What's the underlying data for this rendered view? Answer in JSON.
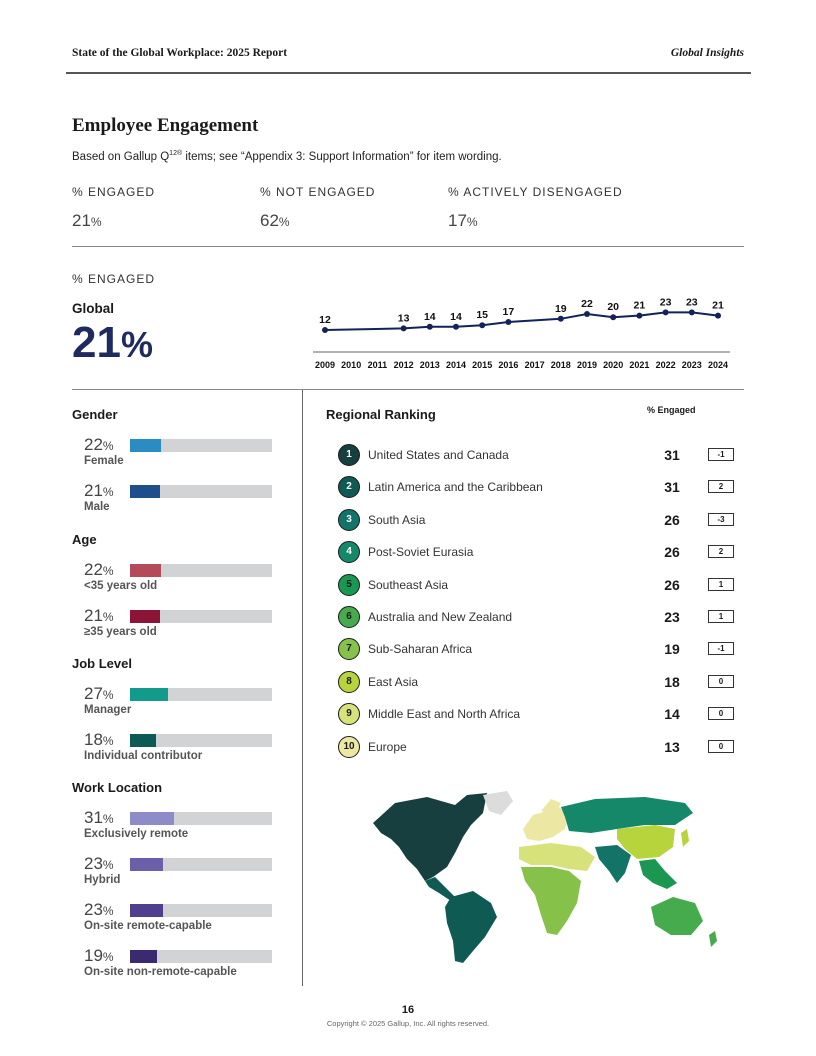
{
  "header": {
    "report_title": "State of the Global Workplace: 2025 Report",
    "section_tag": "Global Insights"
  },
  "section": {
    "title": "Employee Engagement",
    "subtitle_pre": "Based on Gallup Q",
    "subtitle_sup": "12®",
    "subtitle_post": " items; see “Appendix 3: Support Information” for item wording."
  },
  "summary": [
    {
      "label": "% ENGAGED",
      "value": "21",
      "unit": "%"
    },
    {
      "label": "% NOT ENGAGED",
      "value": "62",
      "unit": "%"
    },
    {
      "label": "% ACTIVELY DISENGAGED",
      "value": "17",
      "unit": "%"
    }
  ],
  "engaged_block": {
    "label": "% ENGAGED",
    "global_label": "Global",
    "global_value": "21",
    "global_unit": "%"
  },
  "chart_data": {
    "type": "line",
    "x": [
      "2009",
      "2010",
      "2011",
      "2012",
      "2013",
      "2014",
      "2015",
      "2016",
      "2017",
      "2018",
      "2019",
      "2020",
      "2021",
      "2022",
      "2023",
      "2024"
    ],
    "series": [
      {
        "values": [
          12,
          null,
          null,
          13,
          14,
          14,
          15,
          17,
          null,
          19,
          22,
          20,
          21,
          23,
          23,
          21
        ]
      }
    ],
    "ylim": [
      0,
      30
    ],
    "grid": false,
    "color": "#14225a"
  },
  "demographics": [
    {
      "group": "Gender",
      "items": [
        {
          "value": "22",
          "unit": "%",
          "label": "Female",
          "fraction": 0.22,
          "color": "#2b8cc4"
        },
        {
          "value": "21",
          "unit": "%",
          "label": "Male",
          "fraction": 0.21,
          "color": "#1f4e8c"
        }
      ]
    },
    {
      "group": "Age",
      "items": [
        {
          "value": "22",
          "unit": "%",
          "label": "<35 years old",
          "fraction": 0.22,
          "color": "#b34b5a"
        },
        {
          "value": "21",
          "unit": "%",
          "label": "≥35 years old",
          "fraction": 0.21,
          "color": "#8c1436"
        }
      ]
    },
    {
      "group": "Job Level",
      "items": [
        {
          "value": "27",
          "unit": "%",
          "label": "Manager",
          "fraction": 0.27,
          "color": "#129a8a"
        },
        {
          "value": "18",
          "unit": "%",
          "label": "Individual contributor",
          "fraction": 0.18,
          "color": "#0b5a55"
        }
      ]
    },
    {
      "group": "Work Location",
      "items": [
        {
          "value": "31",
          "unit": "%",
          "label": "Exclusively remote",
          "fraction": 0.31,
          "color": "#8e8cc8"
        },
        {
          "value": "23",
          "unit": "%",
          "label": "Hybrid",
          "fraction": 0.23,
          "color": "#6a5fa8"
        },
        {
          "value": "23",
          "unit": "%",
          "label": "On-site remote-capable",
          "fraction": 0.23,
          "color": "#4f3f8e"
        },
        {
          "value": "19",
          "unit": "%",
          "label": "On-site non-remote-capable",
          "fraction": 0.19,
          "color": "#3b2a70"
        }
      ]
    }
  ],
  "ranking": {
    "title": "Regional Ranking",
    "column_header": "% Engaged",
    "rows": [
      {
        "rank": "1",
        "name": "United States and Canada",
        "score": "31",
        "change": "-1",
        "color": "#173f3f",
        "text_color": "#ffffff"
      },
      {
        "rank": "2",
        "name": "Latin America and the Caribbean",
        "score": "31",
        "change": "2",
        "color": "#0f5a52",
        "text_color": "#ffffff"
      },
      {
        "rank": "3",
        "name": "South Asia",
        "score": "26",
        "change": "-3",
        "color": "#127466",
        "text_color": "#ffffff"
      },
      {
        "rank": "4",
        "name": "Post-Soviet Eurasia",
        "score": "26",
        "change": "2",
        "color": "#15886a",
        "text_color": "#ffffff"
      },
      {
        "rank": "5",
        "name": "Southeast Asia",
        "score": "26",
        "change": "1",
        "color": "#1a9750",
        "text_color": "#1a1a1a"
      },
      {
        "rank": "6",
        "name": "Australia and New Zealand",
        "score": "23",
        "change": "1",
        "color": "#45ab4d",
        "text_color": "#1a1a1a"
      },
      {
        "rank": "7",
        "name": "Sub-Saharan Africa",
        "score": "19",
        "change": "-1",
        "color": "#86c24a",
        "text_color": "#1a1a1a"
      },
      {
        "rank": "8",
        "name": "East Asia",
        "score": "18",
        "change": "0",
        "color": "#b8d43c",
        "text_color": "#1a1a1a"
      },
      {
        "rank": "9",
        "name": "Middle East and North Africa",
        "score": "14",
        "change": "0",
        "color": "#d8e27a",
        "text_color": "#1a1a1a"
      },
      {
        "rank": "10",
        "name": "Europe",
        "score": "13",
        "change": "0",
        "color": "#ece8a4",
        "text_color": "#1a1a1a"
      }
    ]
  },
  "map": {
    "icon": "world-map-icon",
    "no_data_color": "#dcdcdc"
  },
  "footer": {
    "page_number": "16",
    "copyright": "Copyright © 2025 Gallup, Inc. All rights reserved."
  }
}
